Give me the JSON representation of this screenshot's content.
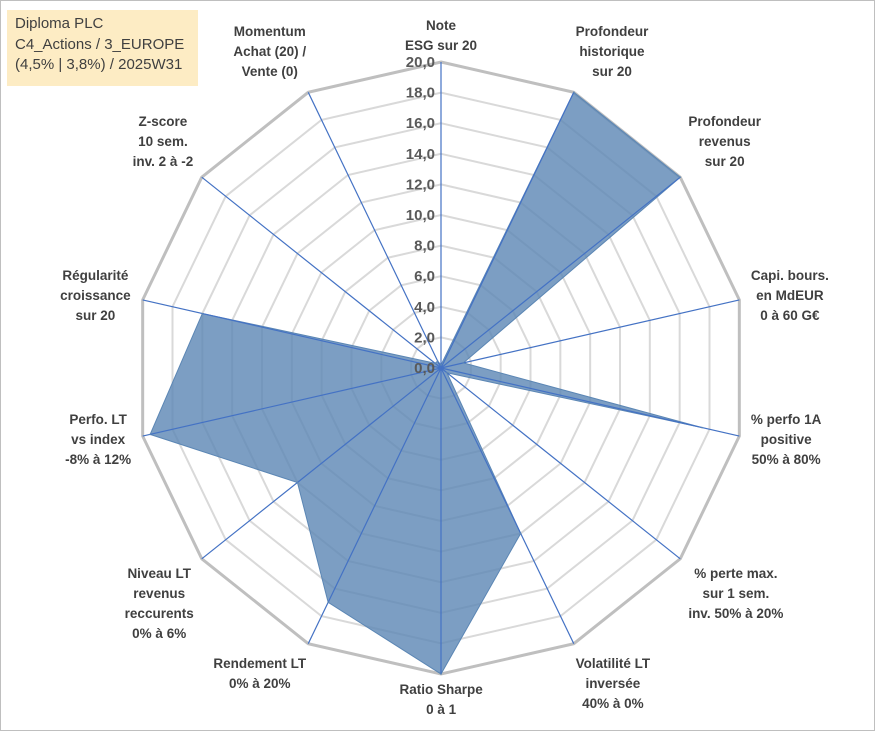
{
  "info_box": {
    "line1": "Diploma PLC",
    "line2": "C4_Actions / 3_EUROPE",
    "line3": "(4,5% | 3,8%) / 2025W31"
  },
  "colors": {
    "fill": "#5b86b4",
    "fill_opacity": "0.8",
    "spoke": "#4472c4",
    "ring_outer": "#bfbfbf",
    "ring_inner": "#d9d9d9",
    "info_bg": "#fdecc4"
  },
  "chart_data": {
    "type": "radar",
    "title": "",
    "rmin": 0,
    "rmax": 20,
    "tick_step": 2,
    "tick_labels": [
      "0,0",
      "2,0",
      "4,0",
      "6,0",
      "8,0",
      "10,0",
      "12,0",
      "14,0",
      "16,0",
      "18,0",
      "20,0"
    ],
    "grid": true,
    "legend": "none",
    "axes": [
      {
        "label": [
          "Note",
          "ESG sur 20"
        ],
        "value": 0.2
      },
      {
        "label": [
          "Profondeur",
          "historique",
          "sur 20"
        ],
        "value": 20
      },
      {
        "label": [
          "Profondeur",
          "revenus",
          "sur 20"
        ],
        "value": 20
      },
      {
        "label": [
          "Capi. bours.",
          "en MdEUR",
          "0 à 60 G€"
        ],
        "value": 1.5
      },
      {
        "label": [
          "% perfo 1A",
          "positive",
          "50% à 80%"
        ],
        "value": 17.5
      },
      {
        "label": [
          "% perte max.",
          "sur 1 sem.",
          "inv. 50% à 20%"
        ],
        "value": 0.5
      },
      {
        "label": [
          "Volatilité LT",
          "inversée",
          "40% à 0%"
        ],
        "value": 12
      },
      {
        "label": [
          "Ratio Sharpe",
          "0 à 1"
        ],
        "value": 20
      },
      {
        "label": [
          "Rendement LT",
          "0% à 20%"
        ],
        "value": 17
      },
      {
        "label": [
          "Niveau LT",
          "revenus",
          "reccurents",
          "0% à 6%"
        ],
        "value": 12
      },
      {
        "label": [
          "Perfo. LT",
          "vs index",
          "-8% à 12%"
        ],
        "value": 19.5
      },
      {
        "label": [
          "Régularité",
          "croissance",
          "sur 20"
        ],
        "value": 16
      },
      {
        "label": [
          "Z-score",
          "10 sem.",
          "inv. 2 à -2"
        ],
        "value": 0.5
      },
      {
        "label": [
          "Momentum",
          "Achat (20) /",
          "Vente (0)"
        ],
        "value": 0.5
      }
    ]
  }
}
